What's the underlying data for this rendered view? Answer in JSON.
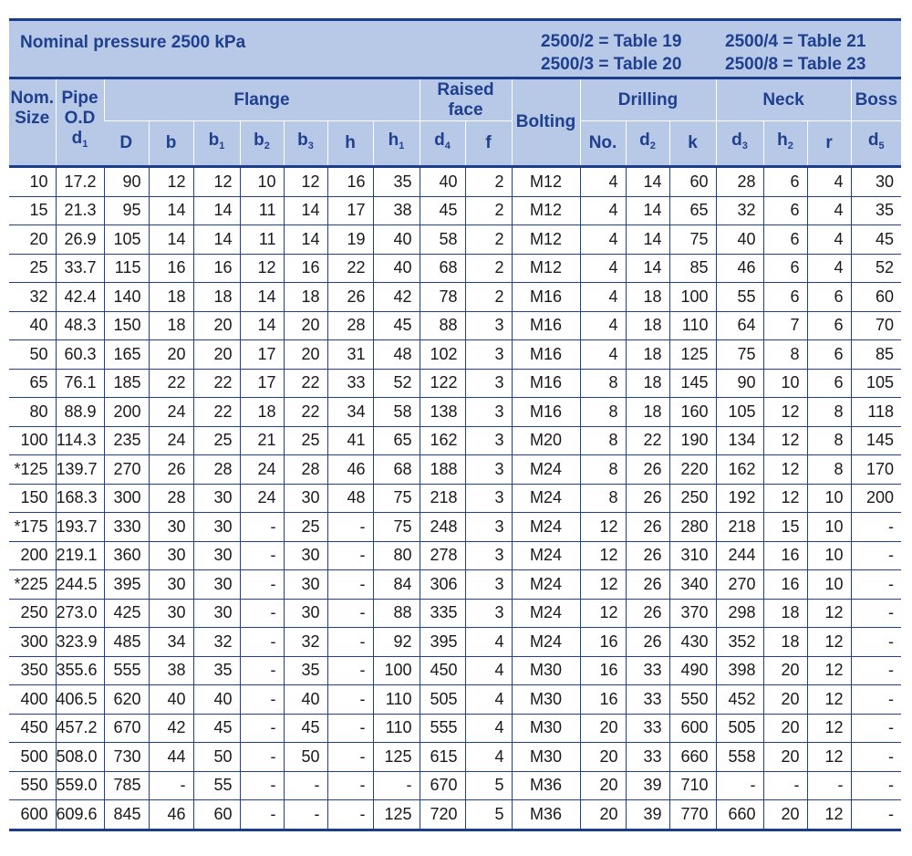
{
  "header": {
    "title": "Nominal pressure 2500 kPa",
    "refs_left": [
      "2500/2 = Table 19",
      "2500/3 = Table 20"
    ],
    "refs_right": [
      "2500/4 = Table 21",
      "2500/8 = Table 23"
    ]
  },
  "columns": {
    "nom": "Nom.",
    "size": "Size",
    "pipe": "Pipe",
    "od": "O.D",
    "d1_base": "d",
    "d1_sub": "1",
    "flange": "Flange",
    "D": "D",
    "b": "b",
    "b1_base": "b",
    "b1_sub": "1",
    "b2_base": "b",
    "b2_sub": "2",
    "b3_base": "b",
    "b3_sub": "3",
    "h": "h",
    "h1_base": "h",
    "h1_sub": "1",
    "raised_face": "Raised face",
    "d4_base": "d",
    "d4_sub": "4",
    "f": "f",
    "bolting": "Bolting",
    "drilling": "Drilling",
    "no": "No.",
    "d2_base": "d",
    "d2_sub": "2",
    "k": "k",
    "neck": "Neck",
    "d3_base": "d",
    "d3_sub": "3",
    "h2_base": "h",
    "h2_sub": "2",
    "r": "r",
    "boss": "Boss",
    "d5_base": "d",
    "d5_sub": "5"
  },
  "rows": [
    [
      "10",
      "17.2",
      "90",
      "12",
      "12",
      "10",
      "12",
      "16",
      "35",
      "40",
      "2",
      "M12",
      "4",
      "14",
      "60",
      "28",
      "6",
      "4",
      "30"
    ],
    [
      "15",
      "21.3",
      "95",
      "14",
      "14",
      "11",
      "14",
      "17",
      "38",
      "45",
      "2",
      "M12",
      "4",
      "14",
      "65",
      "32",
      "6",
      "4",
      "35"
    ],
    [
      "20",
      "26.9",
      "105",
      "14",
      "14",
      "11",
      "14",
      "19",
      "40",
      "58",
      "2",
      "M12",
      "4",
      "14",
      "75",
      "40",
      "6",
      "4",
      "45"
    ],
    [
      "25",
      "33.7",
      "115",
      "16",
      "16",
      "12",
      "16",
      "22",
      "40",
      "68",
      "2",
      "M12",
      "4",
      "14",
      "85",
      "46",
      "6",
      "4",
      "52"
    ],
    [
      "32",
      "42.4",
      "140",
      "18",
      "18",
      "14",
      "18",
      "26",
      "42",
      "78",
      "2",
      "M16",
      "4",
      "18",
      "100",
      "55",
      "6",
      "6",
      "60"
    ],
    [
      "40",
      "48.3",
      "150",
      "18",
      "20",
      "14",
      "20",
      "28",
      "45",
      "88",
      "3",
      "M16",
      "4",
      "18",
      "110",
      "64",
      "7",
      "6",
      "70"
    ],
    [
      "50",
      "60.3",
      "165",
      "20",
      "20",
      "17",
      "20",
      "31",
      "48",
      "102",
      "3",
      "M16",
      "4",
      "18",
      "125",
      "75",
      "8",
      "6",
      "85"
    ],
    [
      "65",
      "76.1",
      "185",
      "22",
      "22",
      "17",
      "22",
      "33",
      "52",
      "122",
      "3",
      "M16",
      "8",
      "18",
      "145",
      "90",
      "10",
      "6",
      "105"
    ],
    [
      "80",
      "88.9",
      "200",
      "24",
      "22",
      "18",
      "22",
      "34",
      "58",
      "138",
      "3",
      "M16",
      "8",
      "18",
      "160",
      "105",
      "12",
      "8",
      "118"
    ],
    [
      "100",
      "114.3",
      "235",
      "24",
      "25",
      "21",
      "25",
      "41",
      "65",
      "162",
      "3",
      "M20",
      "8",
      "22",
      "190",
      "134",
      "12",
      "8",
      "145"
    ],
    [
      "*125",
      "139.7",
      "270",
      "26",
      "28",
      "24",
      "28",
      "46",
      "68",
      "188",
      "3",
      "M24",
      "8",
      "26",
      "220",
      "162",
      "12",
      "8",
      "170"
    ],
    [
      "150",
      "168.3",
      "300",
      "28",
      "30",
      "24",
      "30",
      "48",
      "75",
      "218",
      "3",
      "M24",
      "8",
      "26",
      "250",
      "192",
      "12",
      "10",
      "200"
    ],
    [
      "*175",
      "193.7",
      "330",
      "30",
      "30",
      "-",
      "25",
      "-",
      "75",
      "248",
      "3",
      "M24",
      "12",
      "26",
      "280",
      "218",
      "15",
      "10",
      "-"
    ],
    [
      "200",
      "219.1",
      "360",
      "30",
      "30",
      "-",
      "30",
      "-",
      "80",
      "278",
      "3",
      "M24",
      "12",
      "26",
      "310",
      "244",
      "16",
      "10",
      "-"
    ],
    [
      "*225",
      "244.5",
      "395",
      "30",
      "30",
      "-",
      "30",
      "-",
      "84",
      "306",
      "3",
      "M24",
      "12",
      "26",
      "340",
      "270",
      "16",
      "10",
      "-"
    ],
    [
      "250",
      "273.0",
      "425",
      "30",
      "30",
      "-",
      "30",
      "-",
      "88",
      "335",
      "3",
      "M24",
      "12",
      "26",
      "370",
      "298",
      "18",
      "12",
      "-"
    ],
    [
      "300",
      "323.9",
      "485",
      "34",
      "32",
      "-",
      "32",
      "-",
      "92",
      "395",
      "4",
      "M24",
      "16",
      "26",
      "430",
      "352",
      "18",
      "12",
      "-"
    ],
    [
      "350",
      "355.6",
      "555",
      "38",
      "35",
      "-",
      "35",
      "-",
      "100",
      "450",
      "4",
      "M30",
      "16",
      "33",
      "490",
      "398",
      "20",
      "12",
      "-"
    ],
    [
      "400",
      "406.5",
      "620",
      "40",
      "40",
      "-",
      "40",
      "-",
      "110",
      "505",
      "4",
      "M30",
      "16",
      "33",
      "550",
      "452",
      "20",
      "12",
      "-"
    ],
    [
      "450",
      "457.2",
      "670",
      "42",
      "45",
      "-",
      "45",
      "-",
      "110",
      "555",
      "4",
      "M30",
      "20",
      "33",
      "600",
      "505",
      "20",
      "12",
      "-"
    ],
    [
      "500",
      "508.0",
      "730",
      "44",
      "50",
      "-",
      "50",
      "-",
      "125",
      "615",
      "4",
      "M30",
      "20",
      "33",
      "660",
      "558",
      "20",
      "12",
      "-"
    ],
    [
      "550",
      "559.0",
      "785",
      "-",
      "55",
      "-",
      "-",
      "-",
      "-",
      "670",
      "5",
      "M36",
      "20",
      "39",
      "710",
      "-",
      "-",
      "-",
      "-"
    ],
    [
      "600",
      "609.6",
      "845",
      "46",
      "60",
      "-",
      "-",
      "-",
      "125",
      "720",
      "5",
      "M36",
      "20",
      "39",
      "770",
      "660",
      "20",
      "12",
      "-"
    ]
  ]
}
